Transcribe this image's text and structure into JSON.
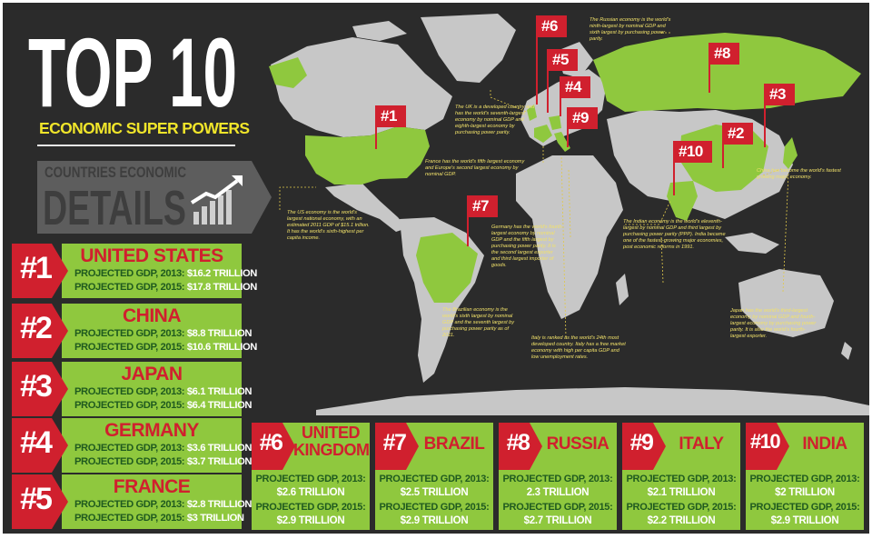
{
  "title": {
    "line1": "TOP 10",
    "line2": "ECONOMIC SUPER POWERS"
  },
  "details_banner": {
    "line1": "COUNTRIES ECONOMIC",
    "line2": "DETAILS"
  },
  "colors": {
    "red": "#d0202e",
    "green": "#8fc83e",
    "yellow": "#f0e52a",
    "background": "#2b2b2b",
    "land": "#c7c7c7"
  },
  "top5": [
    {
      "rank": "#1",
      "country": "UNITED STATES",
      "gdp2013_label": "PROJECTED GDP, 2013:",
      "gdp2013": "$16.2 TRILLION",
      "gdp2015_label": "PROJECTED GDP, 2015:",
      "gdp2015": "$17.8 TRILLION"
    },
    {
      "rank": "#2",
      "country": "CHINA",
      "gdp2013_label": "PROJECTED GDP, 2013:",
      "gdp2013": "$8.8 TRILLION",
      "gdp2015_label": "PROJECTED GDP, 2015:",
      "gdp2015": "$10.6 TRILLION"
    },
    {
      "rank": "#3",
      "country": "JAPAN",
      "gdp2013_label": "PROJECTED GDP, 2013:",
      "gdp2013": "$6.1 TRILLION",
      "gdp2015_label": "PROJECTED GDP, 2015:",
      "gdp2015": "$6.4 TRILLION"
    },
    {
      "rank": "#4",
      "country": "GERMANY",
      "gdp2013_label": "PROJECTED GDP, 2013:",
      "gdp2013": "$3.6 TRILLION",
      "gdp2015_label": "PROJECTED GDP, 2015:",
      "gdp2015": "$3.7 TRILLION"
    },
    {
      "rank": "#5",
      "country": "FRANCE",
      "gdp2013_label": "PROJECTED GDP, 2013:",
      "gdp2013": "$2.8 TRILLION",
      "gdp2015_label": "PROJECTED GDP, 2015:",
      "gdp2015": "$3 TRILLION"
    }
  ],
  "bottom5": [
    {
      "rank": "#6",
      "country": "UNITED KINGDOM",
      "gdp2013_label": "PROJECTED GDP, 2013:",
      "gdp2013": "$2.6 TRILLION",
      "gdp2015_label": "PROJECTED GDP, 2015:",
      "gdp2015": "$2.9 TRILLION"
    },
    {
      "rank": "#7",
      "country": "BRAZIL",
      "gdp2013_label": "PROJECTED GDP, 2013:",
      "gdp2013": "$2.5 TRILLION",
      "gdp2015_label": "PROJECTED GDP, 2015:",
      "gdp2015": "$2.9 TRILLION"
    },
    {
      "rank": "#8",
      "country": "RUSSIA",
      "gdp2013_label": "PROJECTED GDP, 2013:",
      "gdp2013": "2.3 TRILLION",
      "gdp2015_label": "PROJECTED GDP, 2015:",
      "gdp2015": "$2.7 TRILLION"
    },
    {
      "rank": "#9",
      "country": "ITALY",
      "gdp2013_label": "PROJECTED GDP, 2013:",
      "gdp2013": "$2.1 TRILLION",
      "gdp2015_label": "PROJECTED GDP, 2015:",
      "gdp2015": "$2.2 TRILLION"
    },
    {
      "rank": "#10",
      "country": "INDIA",
      "gdp2013_label": "PROJECTED GDP, 2013:",
      "gdp2013": "$2 TRILLION",
      "gdp2015_label": "PROJECTED GDP, 2015:",
      "gdp2015": "$2.9 TRILLION"
    }
  ],
  "map_flags": [
    "#1",
    "#2",
    "#3",
    "#4",
    "#5",
    "#6",
    "#7",
    "#8",
    "#9",
    "#10"
  ],
  "map_notes": {
    "russia": "The Russian economy is the world's ninth-largest by nominal GDP and sixth largest by purchasing power parity.",
    "uk": "The UK is a developed country and has the world's seventh-largest economy by nominal GDP and eighth-largest economy by purchasing power parity.",
    "france": "France has the world's fifth largest economy and Europe's second largest economy by nominal GDP.",
    "us": "The US economy is the world's largest national economy, with an estimated 2011 GDP of $15.1 trillion. It has the world's sixth-highest per capita income.",
    "germany": "Germany has the world's fourth largest economy by nominal GDP and the fifth largest by purchasing power parity. It is the second largest exporter and third largest importer of goods.",
    "india": "The Indian economy is the world's eleventh-largest by nominal GDP and third largest by purchasing power parity (PPP). India became one of the fastest-growing major economies, post economic reforms in 1991.",
    "china": "China has become the world's fastest growing major economy.",
    "brazil": "The Brazilian economy is the world's sixth largest by nominal GDP and the seventh largest by purchasing power parity as of 2011.",
    "italy": "Italy is ranked as the world's 24th most developed country. Italy has a free market economy with high per capita GDP and low unemployment rates.",
    "japan": "Japan has the world's third-largest economy by nominal GDP and fourth-largest economy by purchasing power parity. It is also the world's fourth-largest exporter."
  }
}
